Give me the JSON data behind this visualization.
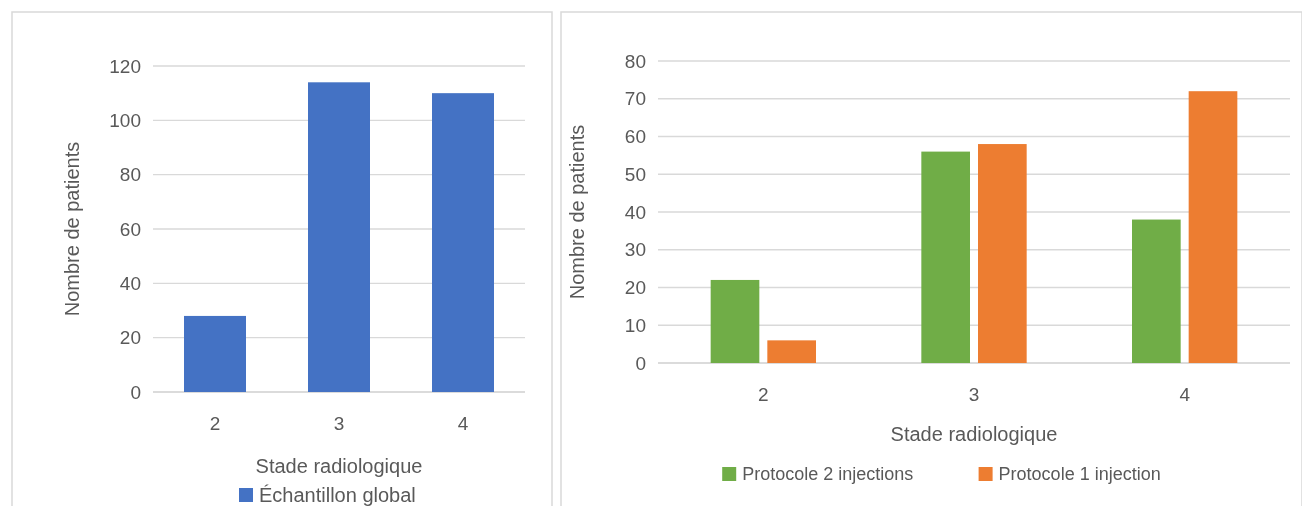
{
  "chart_data": [
    {
      "type": "bar",
      "xlabel": "Stade radiologique",
      "ylabel": "Nombre de patients",
      "categories": [
        "2",
        "3",
        "4"
      ],
      "series": [
        {
          "name": "Échantillon global",
          "color": "#4472c4",
          "values": [
            28,
            114,
            110
          ]
        }
      ],
      "ylim": [
        0,
        120
      ],
      "yticks": [
        0,
        20,
        40,
        60,
        80,
        100,
        120
      ],
      "grid": "y",
      "legend": "bottom"
    },
    {
      "type": "bar",
      "xlabel": "Stade radiologique",
      "ylabel": "Nombre de patients",
      "categories": [
        "2",
        "3",
        "4"
      ],
      "series": [
        {
          "name": "Protocole 2 injections",
          "color": "#70ad47",
          "values": [
            22,
            56,
            38
          ]
        },
        {
          "name": "Protocole 1 injection",
          "color": "#ed7d31",
          "values": [
            6,
            58,
            72
          ]
        }
      ],
      "ylim": [
        0,
        80
      ],
      "yticks": [
        0,
        10,
        20,
        30,
        40,
        50,
        60,
        70,
        80
      ],
      "grid": "y",
      "legend": "bottom"
    }
  ]
}
